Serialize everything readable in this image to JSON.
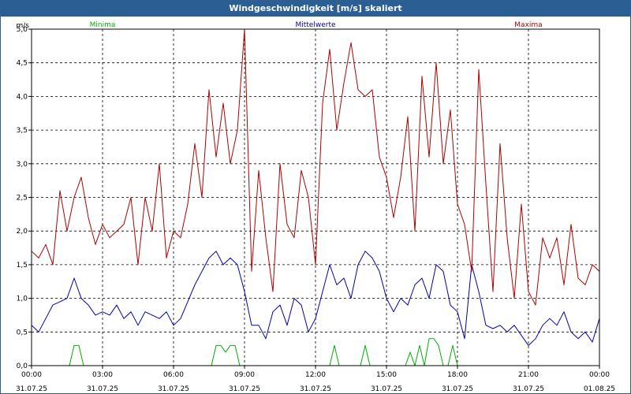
{
  "window": {
    "title": "Windgeschwindigkeit [m/s] skaliert"
  },
  "colors": {
    "minima": "#00b000",
    "mittelwerte": "#0000b0",
    "maxima": "#b00000",
    "titlebar": "#2b5f93",
    "grid": "#000000"
  },
  "chart_data": {
    "type": "line",
    "title": "Windgeschwindigkeit [m/s] skaliert",
    "ylabel": "m/s",
    "xlabel": "",
    "ylim": [
      0,
      5
    ],
    "xlim_hours": [
      0,
      24
    ],
    "grid": true,
    "legend_placement": "top",
    "y_ticks": [
      "0,0",
      "0,5",
      "1,0",
      "1,5",
      "2,0",
      "2,5",
      "3,0",
      "3,5",
      "4,0",
      "4,5",
      "5,0"
    ],
    "x_tick_times": [
      "00:00",
      "03:00",
      "06:00",
      "09:00",
      "12:00",
      "15:00",
      "18:00",
      "21:00",
      "00:00"
    ],
    "x_tick_dates": [
      "31.07.25",
      "31.07.25",
      "31.07.25",
      "31.07.25",
      "31.07.25",
      "31.07.25",
      "31.07.25",
      "31.07.25",
      "01.08.25"
    ],
    "series": [
      {
        "name": "Minima",
        "color": "#00b000",
        "x_hours": [
          0,
          1.6,
          1.8,
          2.0,
          2.2,
          7.6,
          7.8,
          8.0,
          8.2,
          8.4,
          8.6,
          8.8,
          12.6,
          12.8,
          13.0,
          13.9,
          14.1,
          14.3,
          15.8,
          16.0,
          16.2,
          16.4,
          16.6,
          16.8,
          17.0,
          17.2,
          17.4,
          17.6,
          17.8,
          18.0,
          18.2,
          24
        ],
        "values": [
          0,
          0,
          0.3,
          0.3,
          0,
          0,
          0.3,
          0.3,
          0.2,
          0.3,
          0.3,
          0,
          0,
          0.3,
          0,
          0,
          0.3,
          0,
          0,
          0.2,
          0,
          0.3,
          0,
          0.4,
          0.4,
          0.3,
          0,
          0,
          0.3,
          0,
          0,
          0
        ]
      },
      {
        "name": "Mittelwerte",
        "color": "#0000b0",
        "x_hours": [
          0,
          0.3,
          0.6,
          0.9,
          1.2,
          1.5,
          1.8,
          2.1,
          2.4,
          2.7,
          3.0,
          3.3,
          3.6,
          3.9,
          4.2,
          4.5,
          4.8,
          5.1,
          5.4,
          5.7,
          6.0,
          6.3,
          6.6,
          6.9,
          7.2,
          7.5,
          7.8,
          8.1,
          8.4,
          8.7,
          9.0,
          9.3,
          9.6,
          9.9,
          10.2,
          10.5,
          10.8,
          11.1,
          11.4,
          11.7,
          12.0,
          12.3,
          12.6,
          12.9,
          13.2,
          13.5,
          13.8,
          14.1,
          14.4,
          14.7,
          15.0,
          15.3,
          15.6,
          15.9,
          16.2,
          16.5,
          16.8,
          17.1,
          17.4,
          17.7,
          18.0,
          18.3,
          18.6,
          18.9,
          19.2,
          19.5,
          19.8,
          20.1,
          20.4,
          20.7,
          21.0,
          21.3,
          21.6,
          21.9,
          22.2,
          22.5,
          22.8,
          23.1,
          23.4,
          23.7,
          24.0
        ],
        "values": [
          0.6,
          0.5,
          0.7,
          0.9,
          0.95,
          1.0,
          1.3,
          1.0,
          0.9,
          0.75,
          0.8,
          0.75,
          0.9,
          0.7,
          0.8,
          0.6,
          0.8,
          0.75,
          0.7,
          0.8,
          0.6,
          0.7,
          0.95,
          1.2,
          1.4,
          1.6,
          1.7,
          1.5,
          1.6,
          1.5,
          1.1,
          0.6,
          0.6,
          0.4,
          0.8,
          0.9,
          0.6,
          1.0,
          0.9,
          0.5,
          0.7,
          1.1,
          1.5,
          1.2,
          1.3,
          1.0,
          1.5,
          1.7,
          1.6,
          1.4,
          1.0,
          0.8,
          1.0,
          0.9,
          1.2,
          1.3,
          1.0,
          1.5,
          1.4,
          0.9,
          0.8,
          0.4,
          1.5,
          1.1,
          0.6,
          0.55,
          0.6,
          0.5,
          0.6,
          0.45,
          0.3,
          0.4,
          0.6,
          0.7,
          0.6,
          0.8,
          0.5,
          0.4,
          0.5,
          0.35,
          0.7
        ]
      },
      {
        "name": "Maxima",
        "color": "#b00000",
        "x_hours": [
          0,
          0.3,
          0.6,
          0.9,
          1.2,
          1.5,
          1.8,
          2.1,
          2.4,
          2.7,
          3.0,
          3.3,
          3.6,
          3.9,
          4.2,
          4.5,
          4.8,
          5.1,
          5.4,
          5.7,
          6.0,
          6.3,
          6.6,
          6.9,
          7.2,
          7.5,
          7.8,
          8.1,
          8.4,
          8.7,
          9.0,
          9.3,
          9.6,
          9.9,
          10.2,
          10.5,
          10.8,
          11.1,
          11.4,
          11.7,
          12.0,
          12.3,
          12.6,
          12.9,
          13.2,
          13.5,
          13.8,
          14.1,
          14.4,
          14.7,
          15.0,
          15.3,
          15.6,
          15.9,
          16.2,
          16.5,
          16.8,
          17.1,
          17.4,
          17.7,
          18.0,
          18.3,
          18.6,
          18.9,
          19.2,
          19.5,
          19.8,
          20.1,
          20.4,
          20.7,
          21.0,
          21.3,
          21.6,
          21.9,
          22.2,
          22.5,
          22.8,
          23.1,
          23.4,
          23.7,
          24.0
        ],
        "values": [
          1.7,
          1.6,
          1.8,
          1.5,
          2.6,
          2.0,
          2.5,
          2.8,
          2.2,
          1.8,
          2.1,
          1.9,
          2.0,
          2.1,
          2.5,
          1.5,
          2.5,
          2.0,
          3.0,
          1.6,
          2.0,
          1.9,
          2.4,
          3.3,
          2.5,
          4.1,
          3.1,
          3.9,
          3.0,
          3.5,
          5.0,
          1.4,
          2.9,
          1.9,
          1.1,
          3.0,
          2.1,
          1.9,
          2.9,
          2.5,
          1.5,
          3.9,
          4.7,
          3.5,
          4.2,
          4.8,
          4.1,
          4.0,
          4.1,
          3.1,
          2.8,
          2.2,
          2.8,
          3.7,
          2.0,
          4.3,
          3.1,
          4.5,
          3.0,
          3.8,
          2.4,
          2.1,
          1.4,
          4.4,
          2.7,
          1.1,
          3.3,
          1.9,
          1.0,
          2.4,
          1.1,
          0.9,
          1.9,
          1.6,
          1.9,
          1.2,
          2.1,
          1.3,
          1.2,
          1.5,
          1.4
        ]
      }
    ]
  }
}
